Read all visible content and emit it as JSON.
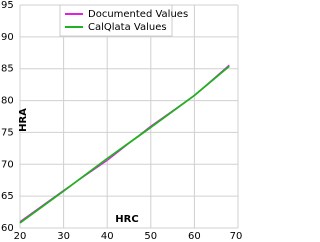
{
  "chart_data": {
    "type": "line",
    "x_label": "HRC",
    "y_label": "HRA",
    "x": [
      20,
      30,
      40,
      50,
      60,
      68
    ],
    "series": [
      {
        "name": "Documented Values",
        "color": "#e020e0",
        "values": [
          61,
          65.9,
          70.6,
          76,
          80.8,
          85.6
        ]
      },
      {
        "name": "CalQlata Values",
        "color": "#20b020",
        "values": [
          60.8,
          65.8,
          70.9,
          75.8,
          80.8,
          85.4
        ]
      }
    ],
    "xlim": [
      20,
      70
    ],
    "xticks": [
      20,
      30,
      40,
      50,
      60,
      70
    ],
    "ylim": [
      60,
      95
    ],
    "yticks": [
      60,
      65,
      70,
      75,
      80,
      85,
      90,
      95
    ],
    "grid": true,
    "legend": "top"
  }
}
